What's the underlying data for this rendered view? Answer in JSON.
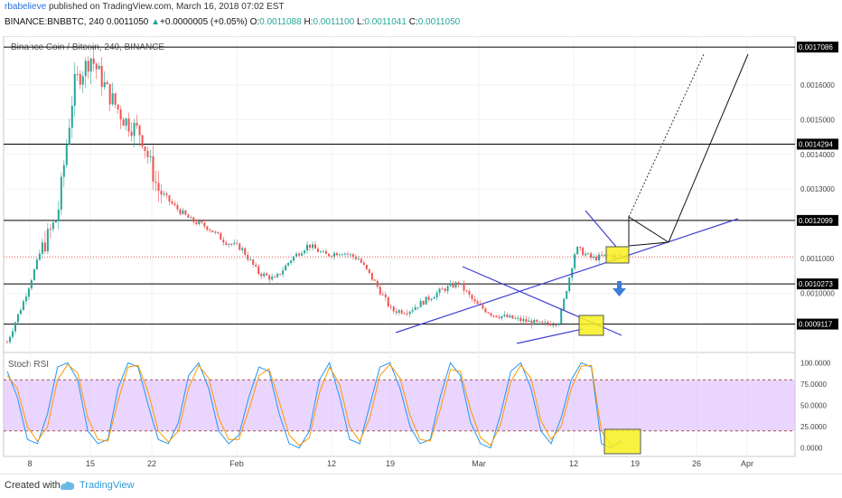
{
  "header": {
    "author": "rbabelieve",
    "published_text": "published on TradingView.com, March 16, 2018 07:02 EST",
    "symbol_line": "BINANCE:BNBBTC, 240",
    "last_price": "0.0011050",
    "change_arrow": "▲",
    "change": "+0.0000005 (+0.05%)",
    "ohlc_labels": {
      "o": "O:",
      "h": "H:",
      "l": "L:",
      "c": "C:"
    },
    "ohlc_values": {
      "o": "0.0011088",
      "h": "0.0011100",
      "l": "0.0011041",
      "c": "0.0011050"
    }
  },
  "footer": {
    "created_with": "Created with",
    "brand": "TradingView"
  },
  "chart_data": [
    {
      "type": "line",
      "title": "Binance Coin / Bitcoin, 240, BINANCE",
      "xlabel": "",
      "ylabel": "",
      "x_tick_labels": [
        "8",
        "15",
        "22",
        "Feb",
        "12",
        "19",
        "Mar",
        "12",
        "19",
        "26",
        "Apr"
      ],
      "y_tick_labels": [
        "0.0016000",
        "0.0015000",
        "0.0014000",
        "0.0013000",
        "0.0011000",
        "0.0010000"
      ],
      "ylim": [
        0.00083,
        0.00174
      ],
      "price_levels": [
        "0.0017086",
        "0.0014294",
        "0.0012099",
        "0.0010273",
        "0.0009117"
      ],
      "price_level_values": [
        0.0017086,
        0.0014294,
        0.0012099,
        0.0010273,
        0.0009117
      ],
      "current_price": 0.001105,
      "colors": {
        "up": "#26a69a",
        "down": "#ef5350",
        "trendline": "#3f3fd1",
        "level": "#000000",
        "highlight": "#f7f01e",
        "current_price_line": "#ef5350"
      },
      "series": [
        {
          "x": [
            "Jan 4",
            "Jan 6",
            "Jan 8",
            "Jan 10",
            "Jan 11",
            "Jan 12",
            "Jan 13",
            "Jan 14",
            "Jan 16",
            "Jan 18",
            "Jan 20",
            "Jan 22",
            "Jan 25",
            "Jan 28",
            "Feb 1",
            "Feb 3",
            "Feb 5",
            "Feb 7",
            "Feb 9",
            "Feb 11",
            "Feb 13",
            "Feb 15",
            "Feb 17",
            "Feb 19",
            "Feb 21",
            "Feb 23",
            "Feb 25",
            "Feb 27",
            "Mar 1",
            "Mar 3",
            "Mar 5",
            "Mar 7",
            "Mar 9",
            "Mar 11",
            "Mar 13",
            "Mar 14",
            "Mar 15",
            "Mar 16"
          ],
          "values": [
            0.00086,
            0.00098,
            0.00112,
            0.00122,
            0.0016,
            0.00168,
            0.00158,
            0.0015,
            0.00146,
            0.0013,
            0.00125,
            0.00121,
            0.00119,
            0.00115,
            0.00113,
            0.00106,
            0.00104,
            0.0011,
            0.00114,
            0.00111,
            0.00112,
            0.0011,
            0.00103,
            0.00095,
            0.00095,
            0.00098,
            0.00101,
            0.00103,
            0.00097,
            0.00094,
            0.00093,
            0.00092,
            0.00091,
            0.00092,
            0.00113,
            0.0011,
            0.00111,
            0.001105
          ]
        }
      ]
    },
    {
      "type": "line",
      "title": "Stoch RSI",
      "ylim": [
        -10,
        110
      ],
      "y_tick_labels": [
        "100.0000",
        "75.0000",
        "50.0000",
        "25.0000",
        "0.0000"
      ],
      "bands": [
        80,
        20
      ],
      "colors": {
        "k": "#2196f3",
        "d": "#ff9800",
        "band": "#d9b3ff"
      },
      "series": [
        {
          "name": "",
          "values": [
            90,
            60,
            10,
            5,
            40,
            95,
            100,
            80,
            20,
            5,
            10,
            70,
            100,
            95,
            50,
            10,
            5,
            30,
            85,
            100,
            70,
            20,
            5,
            15,
            60,
            95,
            90,
            40,
            5,
            0,
            20,
            80,
            100,
            60,
            10,
            5,
            50,
            95,
            100,
            70,
            25,
            5,
            10,
            60,
            100,
            85,
            30,
            5,
            0,
            40,
            90,
            100,
            70,
            20,
            5,
            35,
            80,
            100,
            95,
            5,
            0,
            10
          ]
        },
        {
          "name": "",
          "values": [
            85,
            70,
            25,
            8,
            25,
            80,
            98,
            88,
            35,
            10,
            8,
            55,
            95,
            97,
            65,
            20,
            7,
            20,
            70,
            97,
            82,
            35,
            10,
            10,
            45,
            85,
            93,
            55,
            15,
            3,
            12,
            65,
            95,
            75,
            25,
            8,
            35,
            85,
            98,
            82,
            38,
            10,
            8,
            45,
            92,
            90,
            45,
            12,
            3,
            28,
            78,
            97,
            82,
            32,
            10,
            25,
            70,
            96,
            97,
            20,
            2,
            6
          ]
        }
      ]
    }
  ]
}
